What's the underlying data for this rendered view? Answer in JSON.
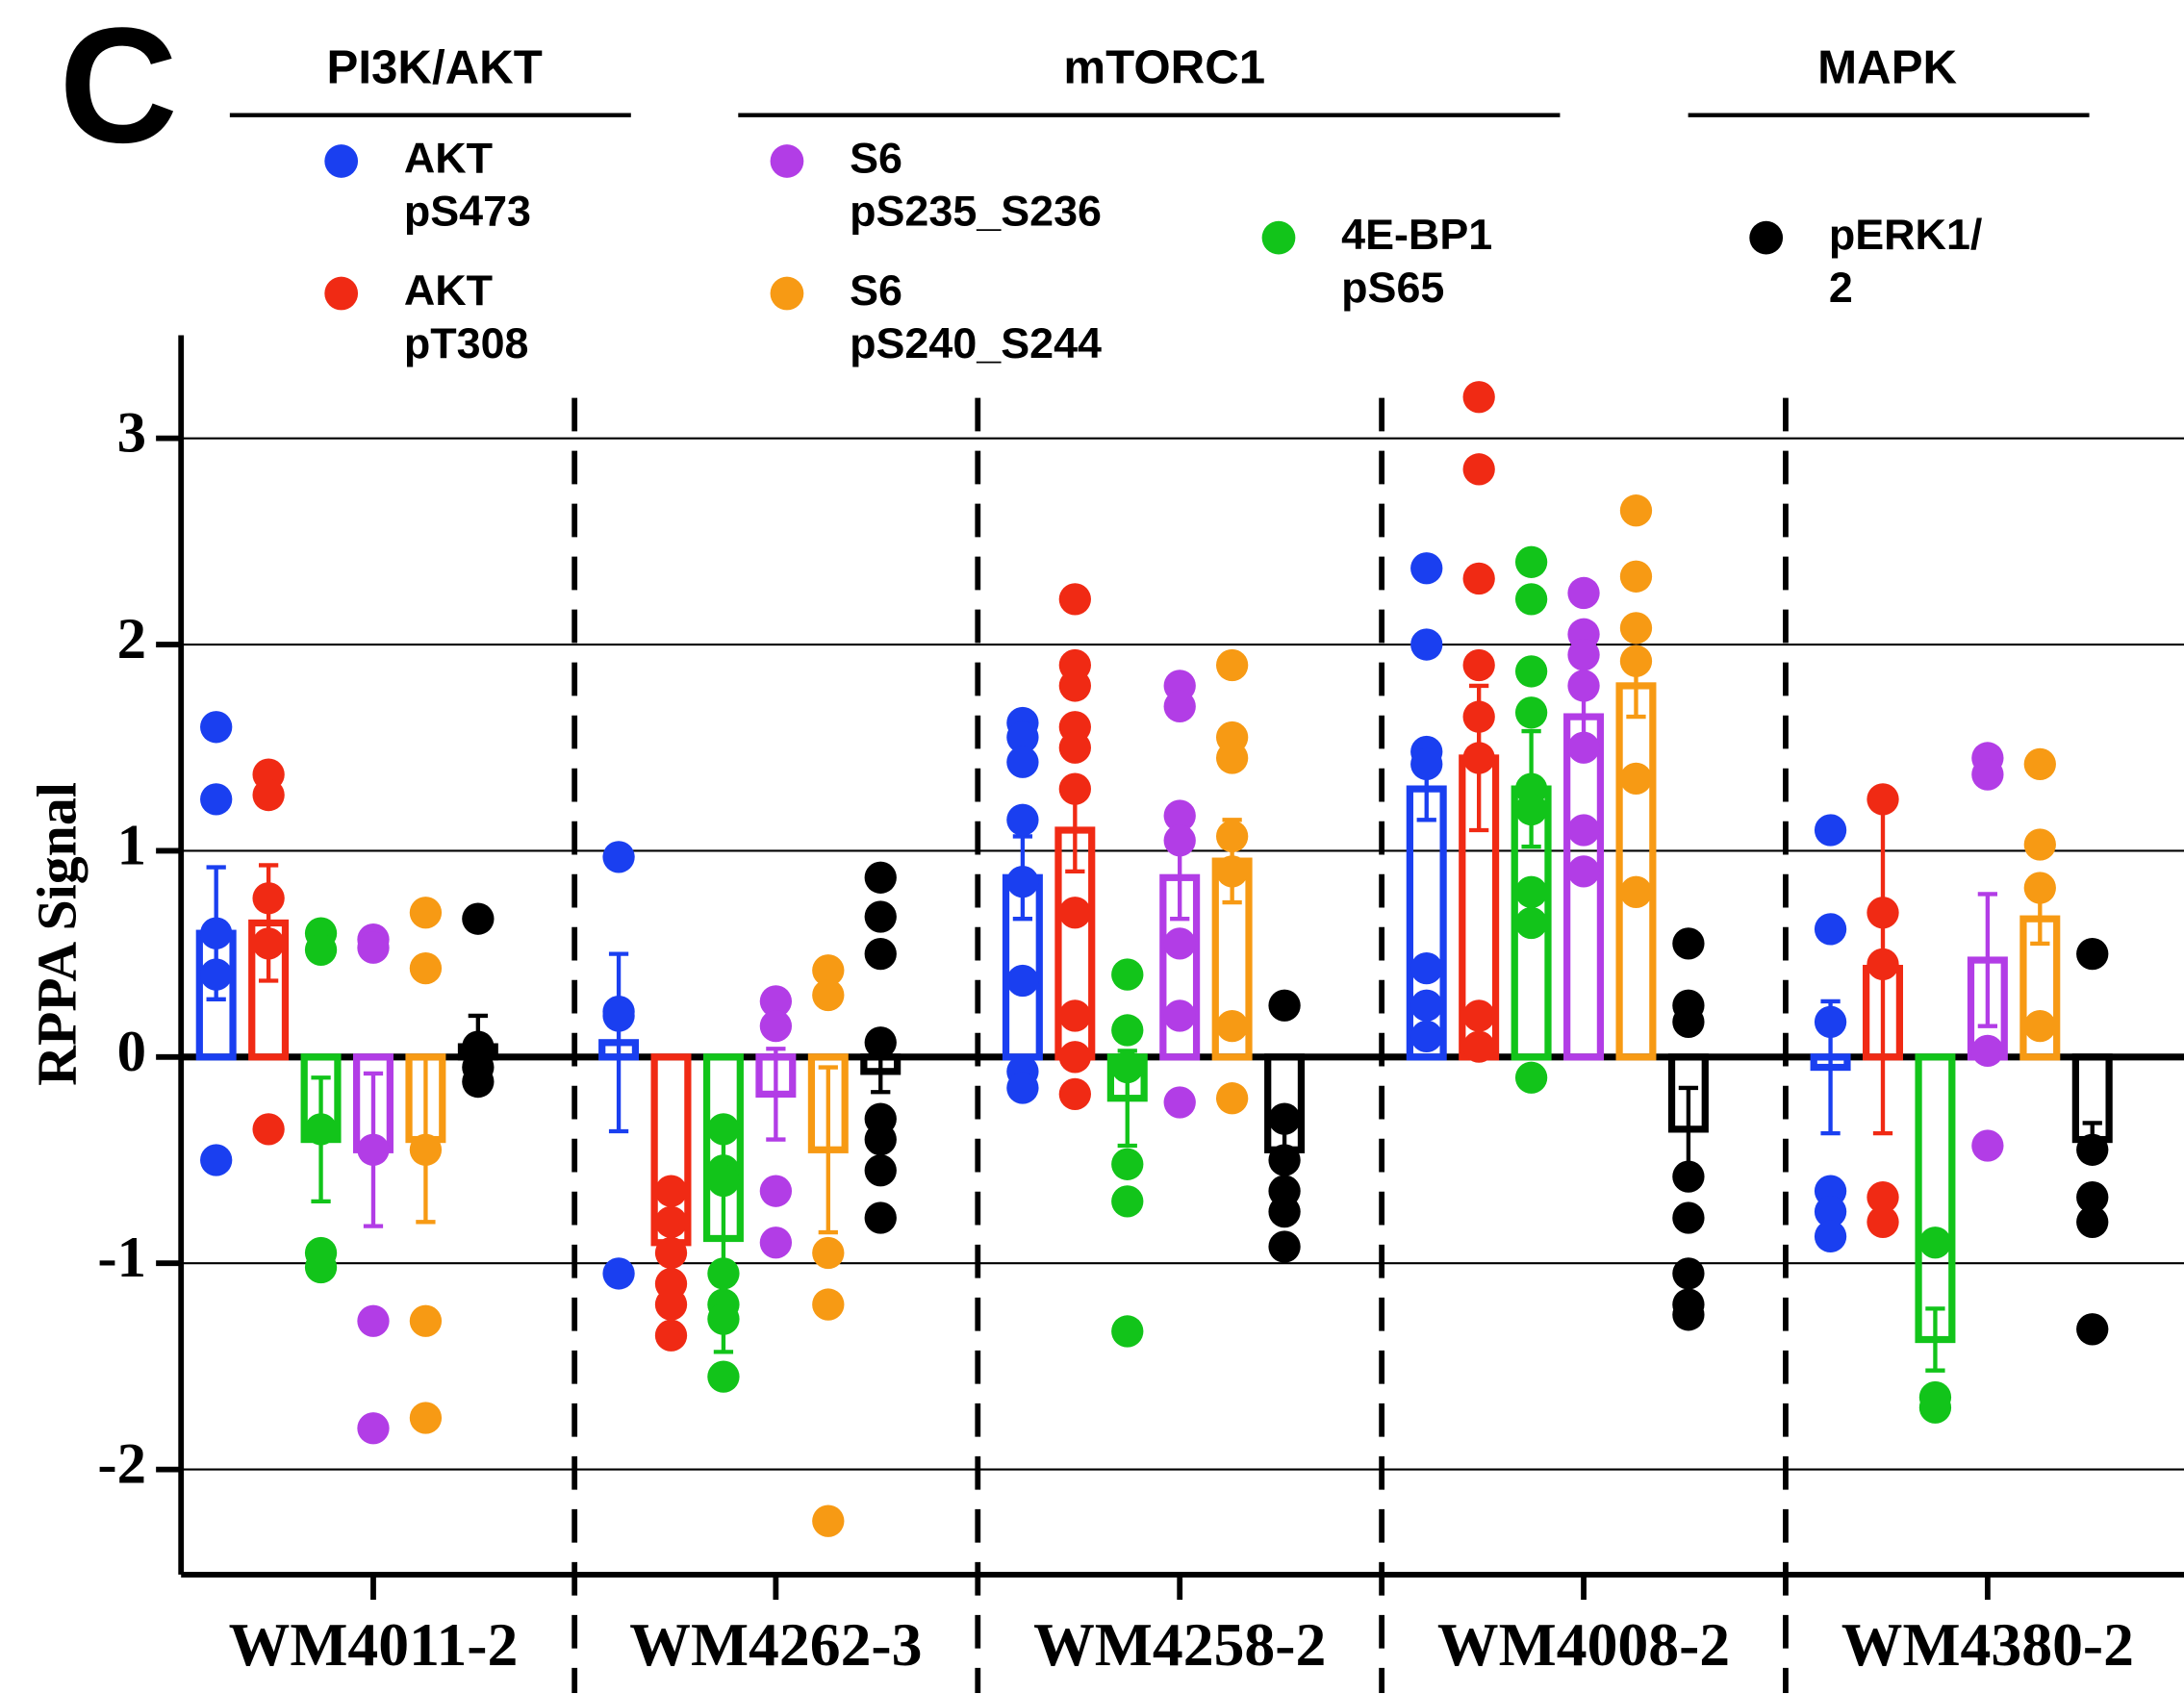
{
  "chart_data": {
    "type": "bar",
    "panel": "C",
    "ylabel": "RPPA Signal",
    "categories": [
      "WM4011-2",
      "WM4262-3",
      "WM4258-2",
      "WM4008-2",
      "WM4380-2"
    ],
    "ylim": [
      -2.51,
      3.5
    ],
    "yticks": [
      -2,
      -1,
      0,
      1,
      2,
      3
    ],
    "grid": true,
    "annotations": [
      {
        "text": "PI3K/AKT"
      },
      {
        "text": "mTORC1"
      },
      {
        "text": "MAPK"
      }
    ],
    "series": [
      {
        "name": "AKT pS473",
        "color": "#1a3ff0",
        "values": [
          0.6,
          0.07,
          0.87,
          1.3,
          -0.05
        ],
        "errors": [
          0.32,
          0.43,
          0.2,
          0.15,
          0.32
        ],
        "points": [
          [
            1.6,
            1.25,
            0.6,
            0.4,
            -0.5
          ],
          [
            0.97,
            0.22,
            0.2,
            -1.05
          ],
          [
            1.62,
            1.55,
            1.43,
            1.15,
            0.85,
            0.37,
            -0.07,
            -0.15
          ],
          [
            2.37,
            2.0,
            1.48,
            1.42,
            0.43,
            0.25,
            0.1
          ],
          [
            1.1,
            0.62,
            0.17,
            -0.65,
            -0.75,
            -0.87
          ]
        ]
      },
      {
        "name": "AKT pT308",
        "color": "#f02a14",
        "values": [
          0.65,
          -0.9,
          1.1,
          1.45,
          0.43
        ],
        "errors": [
          0.28,
          0.2,
          0.2,
          0.35,
          0.8
        ],
        "points": [
          [
            1.37,
            1.27,
            0.77,
            0.55,
            -0.35
          ],
          [
            -0.65,
            -0.8,
            -0.95,
            -1.1,
            -1.2,
            -1.35
          ],
          [
            2.22,
            1.9,
            1.8,
            1.6,
            1.5,
            1.3,
            0.7,
            0.2,
            0.0,
            -0.18
          ],
          [
            3.2,
            2.85,
            2.32,
            1.9,
            1.65,
            1.45,
            0.2,
            0.05
          ],
          [
            1.25,
            0.7,
            0.45,
            -0.68,
            -0.8
          ]
        ]
      },
      {
        "name": "4E-BP1 pS65",
        "color": "#12c41a",
        "values": [
          -0.4,
          -0.88,
          -0.2,
          1.3,
          -1.37
        ],
        "errors": [
          0.3,
          0.55,
          0.23,
          0.28,
          0.15
        ],
        "points": [
          [
            0.6,
            0.52,
            -0.35,
            -0.95,
            -1.02
          ],
          [
            -0.35,
            -0.55,
            -0.6,
            -1.05,
            -1.2,
            -1.27,
            -1.55
          ],
          [
            0.4,
            0.13,
            -0.05,
            -0.52,
            -0.7,
            -1.33
          ],
          [
            2.4,
            2.22,
            1.87,
            1.67,
            1.3,
            1.2,
            0.8,
            0.65,
            -0.1
          ],
          [
            -0.9,
            -1.65,
            -1.7
          ]
        ]
      },
      {
        "name": "S6 pS235_S236",
        "color": "#b23de6",
        "values": [
          -0.45,
          -0.18,
          0.87,
          1.65,
          0.47
        ],
        "errors": [
          0.37,
          0.22,
          0.2,
          0.1,
          0.32
        ],
        "points": [
          [
            0.57,
            0.53,
            -0.45,
            -1.28,
            -1.8
          ],
          [
            0.27,
            0.15,
            -0.65,
            -0.9
          ],
          [
            1.8,
            1.7,
            1.17,
            1.05,
            0.55,
            0.2,
            -0.22
          ],
          [
            2.25,
            2.05,
            1.95,
            1.8,
            1.5,
            1.1,
            0.9
          ],
          [
            1.45,
            1.37,
            0.03,
            -0.43
          ]
        ]
      },
      {
        "name": "S6 pS240_S244",
        "color": "#f79a14",
        "values": [
          -0.4,
          -0.45,
          0.95,
          1.8,
          0.67
        ],
        "errors": [
          0.4,
          0.4,
          0.2,
          0.15,
          0.12
        ],
        "points": [
          [
            0.7,
            0.43,
            -0.45,
            -1.28,
            -1.75
          ],
          [
            0.42,
            0.3,
            -0.95,
            -1.2,
            -2.25
          ],
          [
            1.9,
            1.55,
            1.45,
            1.07,
            0.9,
            0.15,
            -0.2
          ],
          [
            2.65,
            2.33,
            2.08,
            1.92,
            1.35,
            0.8
          ],
          [
            1.42,
            1.03,
            0.82,
            0.15
          ]
        ]
      },
      {
        "name": "pERK1/2",
        "color": "#000000",
        "values": [
          0.05,
          -0.07,
          -0.45,
          -0.35,
          -0.4
        ],
        "errors": [
          0.15,
          0.1,
          0.1,
          0.2,
          0.08
        ],
        "points": [
          [
            0.67,
            0.05,
            -0.05,
            -0.12
          ],
          [
            0.87,
            0.68,
            0.5,
            0.07,
            -0.3,
            -0.4,
            -0.55,
            -0.78
          ],
          [
            0.25,
            -0.3,
            -0.5,
            -0.65,
            -0.75,
            -0.92
          ],
          [
            0.55,
            0.25,
            0.17,
            -0.58,
            -0.78,
            -1.05,
            -1.2,
            -1.25
          ],
          [
            0.5,
            -0.45,
            -0.68,
            -0.8,
            -1.32
          ]
        ]
      }
    ]
  }
}
